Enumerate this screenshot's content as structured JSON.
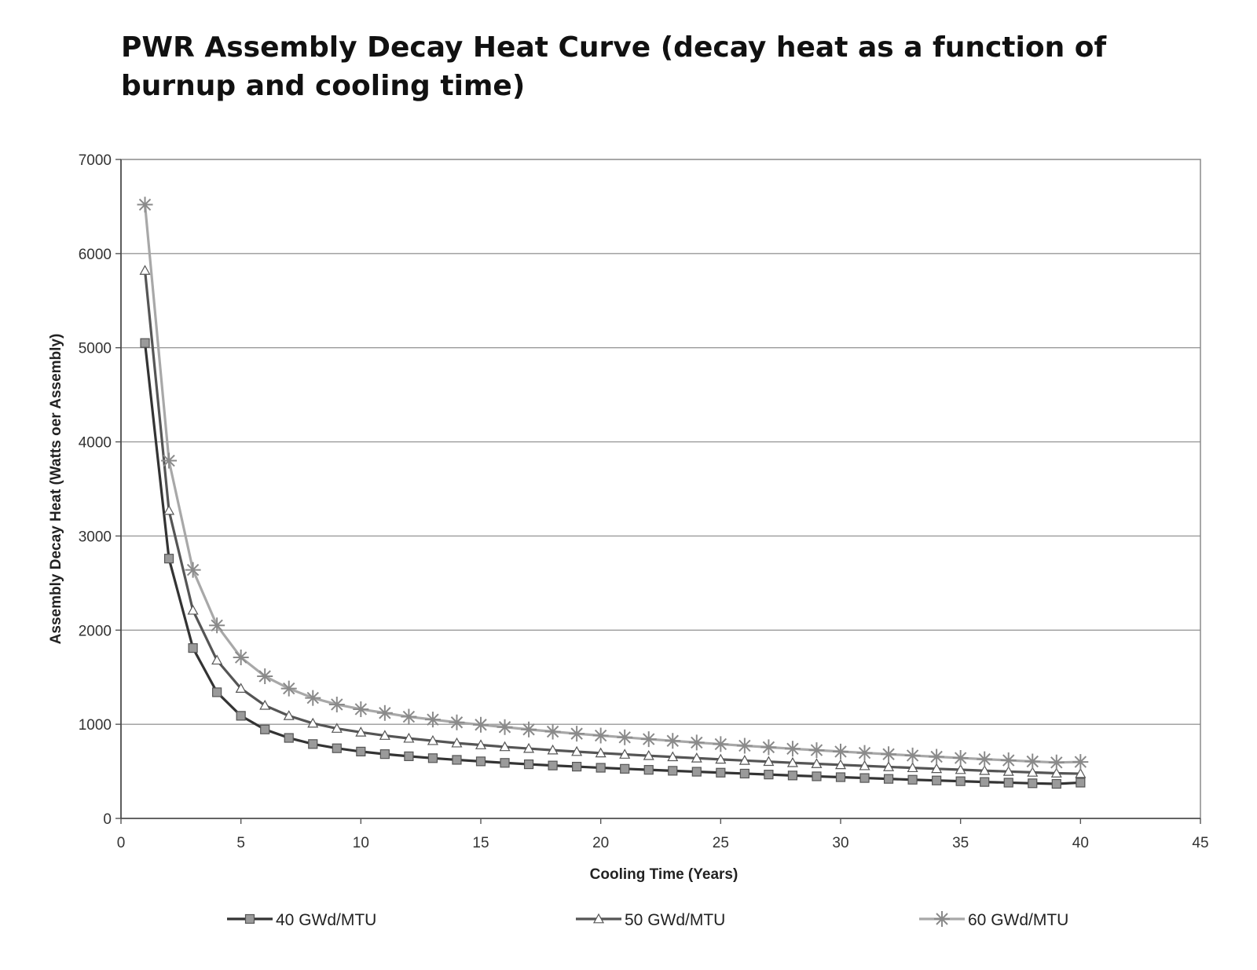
{
  "title": "PWR Assembly Decay Heat Curve (decay heat as a function of burnup and cooling time)",
  "chart_data": {
    "type": "line",
    "title": "PWR Assembly Decay Heat Curve (decay heat as a function of burnup and cooling time)",
    "xlabel": "Cooling Time (Years)",
    "ylabel": "Assembly Decay Heat (Watts oer Assembly)",
    "xlim": [
      0,
      45
    ],
    "ylim": [
      0,
      7000
    ],
    "xticks": [
      0,
      5,
      10,
      15,
      20,
      25,
      30,
      35,
      40,
      45
    ],
    "yticks": [
      0,
      1000,
      2000,
      3000,
      4000,
      5000,
      6000,
      7000
    ],
    "grid": "horizontal",
    "legend_position": "bottom",
    "x": [
      1,
      2,
      3,
      4,
      5,
      6,
      7,
      8,
      9,
      10,
      11,
      12,
      13,
      14,
      15,
      16,
      17,
      18,
      19,
      20,
      21,
      22,
      23,
      24,
      25,
      26,
      27,
      28,
      29,
      30,
      31,
      32,
      33,
      34,
      35,
      36,
      37,
      38,
      39,
      40
    ],
    "series": [
      {
        "name": "40 GWd/MTU",
        "marker": "square",
        "color": "#333333",
        "marker_color": "#9a9a9a",
        "values": [
          5050,
          2760,
          1810,
          1340,
          1090,
          945,
          855,
          790,
          745,
          710,
          683,
          660,
          640,
          622,
          606,
          590,
          575,
          562,
          550,
          538,
          527,
          516,
          506,
          496,
          486,
          476,
          466,
          456,
          447,
          438,
          429,
          420,
          411,
          403,
          395,
          387,
          380,
          373,
          367,
          380
        ]
      },
      {
        "name": "50 GWd/MTU",
        "marker": "triangle",
        "color": "#555555",
        "marker_color": "#ffffff",
        "values": [
          5820,
          3270,
          2210,
          1680,
          1380,
          1200,
          1090,
          1010,
          955,
          915,
          880,
          850,
          825,
          800,
          780,
          760,
          742,
          725,
          709,
          694,
          680,
          666,
          653,
          640,
          627,
          615,
          603,
          591,
          580,
          569,
          558,
          547,
          537,
          527,
          517,
          507,
          498,
          489,
          480,
          475
        ]
      },
      {
        "name": "60 GWd/MTU",
        "marker": "asterisk",
        "color": "#a8a8a8",
        "marker_color": "#8a8a8a",
        "values": [
          6520,
          3800,
          2640,
          2050,
          1710,
          1510,
          1380,
          1280,
          1210,
          1160,
          1120,
          1080,
          1050,
          1020,
          995,
          970,
          945,
          922,
          900,
          880,
          861,
          842,
          824,
          806,
          789,
          772,
          756,
          740,
          725,
          710,
          696,
          682,
          668,
          655,
          642,
          629,
          617,
          605,
          594,
          600
        ]
      }
    ]
  }
}
